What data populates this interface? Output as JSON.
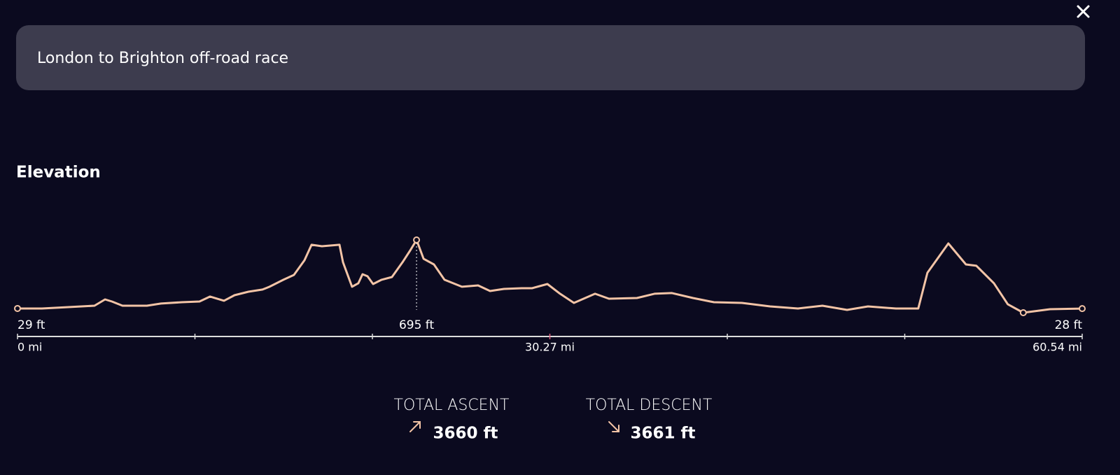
{
  "header": {
    "title": "London to Brighton off-road race"
  },
  "section_title": "Elevation",
  "chart_data": {
    "type": "line",
    "color": "#f3c4a6",
    "x": [
      0,
      1.39,
      2.99,
      4.38,
      4.98,
      5.37,
      5.97,
      7.36,
      8.16,
      9.35,
      10.35,
      10.95,
      11.74,
      12.34,
      13.13,
      13.93,
      14.33,
      15.12,
      15.72,
      16.32,
      16.72,
      17.31,
      18.31,
      18.51,
      19.02,
      19.38,
      19.62,
      19.9,
      20.22,
      20.7,
      21.29,
      21.89,
      22.33,
      22.69,
      23.09,
      23.68,
      24.28,
      25.27,
      26.19,
      26.87,
      27.66,
      28.66,
      29.26,
      30.13,
      30.85,
      31.64,
      32.84,
      33.63,
      35.22,
      36.22,
      37.21,
      38.41,
      39.6,
      41.19,
      42.79,
      44.38,
      45.77,
      47.17,
      48.36,
      49.95,
      51.22,
      51.74,
      52.93,
      53.93,
      54.52,
      55.52,
      56.31,
      57.19,
      58.71,
      60.54
    ],
    "values": [
      29,
      29,
      43,
      56,
      117,
      97,
      56,
      56,
      77,
      90,
      97,
      145,
      104,
      158,
      192,
      213,
      240,
      308,
      355,
      498,
      648,
      634,
      648,
      478,
      240,
      274,
      362,
      342,
      267,
      308,
      335,
      478,
      593,
      695,
      512,
      457,
      308,
      240,
      253,
      199,
      219,
      226,
      226,
      267,
      172,
      83,
      172,
      124,
      131,
      172,
      179,
      131,
      90,
      83,
      49,
      29,
      56,
      15,
      49,
      29,
      29,
      376,
      661,
      457,
      444,
      274,
      70,
      -12,
      22,
      28
    ],
    "value_labels": [
      "29 ft",
      null,
      null,
      null,
      null,
      null,
      null,
      null,
      null,
      null,
      null,
      null,
      null,
      null,
      null,
      null,
      null,
      null,
      null,
      null,
      null,
      null,
      null,
      null,
      null,
      null,
      null,
      null,
      null,
      null,
      null,
      null,
      null,
      "695 ft",
      null,
      null,
      null,
      null,
      null,
      null,
      null,
      null,
      null,
      null,
      null,
      null,
      null,
      null,
      null,
      null,
      null,
      null,
      null,
      null,
      null,
      null,
      null,
      null,
      null,
      null,
      null,
      null,
      null,
      null,
      null,
      null,
      null,
      null,
      null,
      "28 ft"
    ],
    "xlim": [
      0,
      60.54
    ],
    "xticks": [
      {
        "value": 0,
        "label": "0 mi"
      },
      {
        "value": 30.27,
        "label": "30.27 mi"
      },
      {
        "value": 60.54,
        "label": "60.54 mi"
      }
    ],
    "minor_xticks": [
      10.09,
      20.18,
      40.36,
      50.45
    ]
  },
  "stats": [
    {
      "label": "TOTAL ASCENT",
      "value": "3660 ft"
    },
    {
      "label": "TOTAL DESCENT",
      "value": "3661 ft"
    }
  ]
}
